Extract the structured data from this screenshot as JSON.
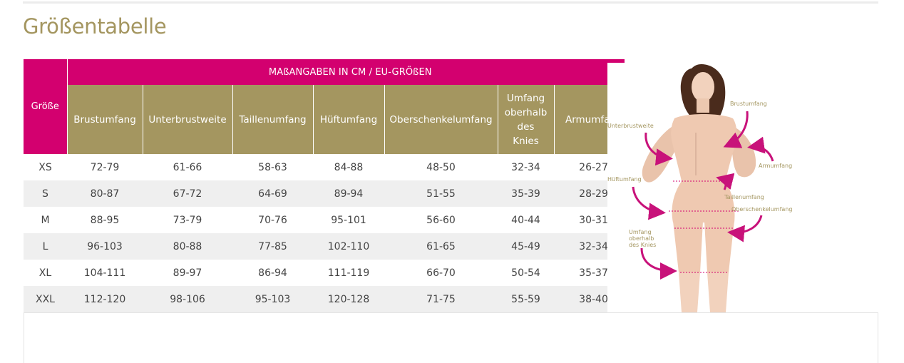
{
  "page": {
    "title": "Größentabelle"
  },
  "table": {
    "size_header": "Größe",
    "group_header": "MAßANGABEN IN CM / EU-GRÖßEN",
    "columns": [
      "Brustumfang",
      "Unterbrustweite",
      "Taillenumfang",
      "Hüftumfang",
      "Oberschenkelumfang",
      "Umfang oberhalb des Knies",
      "Armumfang"
    ],
    "rows": [
      [
        "XS",
        "72-79",
        "61-66",
        "58-63",
        "84-88",
        "48-50",
        "32-34",
        "26-27"
      ],
      [
        "S",
        "80-87",
        "67-72",
        "64-69",
        "89-94",
        "51-55",
        "35-39",
        "28-29"
      ],
      [
        "M",
        "88-95",
        "73-79",
        "70-76",
        "95-101",
        "56-60",
        "40-44",
        "30-31"
      ],
      [
        "L",
        "96-103",
        "80-88",
        "77-85",
        "102-110",
        "61-65",
        "45-49",
        "32-34"
      ],
      [
        "XL",
        "104-111",
        "89-97",
        "86-94",
        "111-119",
        "66-70",
        "50-54",
        "35-37"
      ],
      [
        "XXL",
        "112-120",
        "98-106",
        "95-103",
        "120-128",
        "71-75",
        "55-59",
        "38-40"
      ]
    ]
  },
  "figure": {
    "labels": {
      "brustumfang": "Brustumfang",
      "unterbrustweite": "Unterbrustweite",
      "armumfang": "Armumfang",
      "hueftumfang": "Hüftumfang",
      "taillenumfang": "Taillenumfang",
      "oberschenkelumfang": "Oberschenkelumfang",
      "knie_1": "Umfang",
      "knie_2": "oberhalb",
      "knie_3": "des Knies"
    }
  },
  "colors": {
    "magenta": "#d3006f",
    "gold": "#a49660",
    "stripe": "#efefef"
  }
}
